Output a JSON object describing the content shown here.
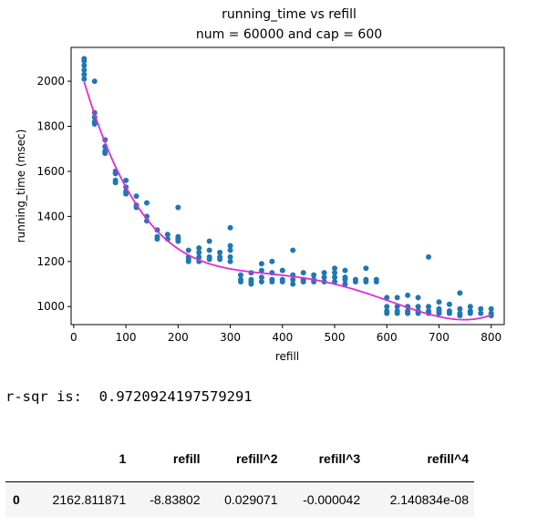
{
  "chart_data": {
    "type": "scatter",
    "title": "running_time vs refill",
    "subtitle": "num = 60000 and cap = 600",
    "xlabel": "refill",
    "ylabel": "running_time (msec)",
    "xlim": [
      -5,
      825
    ],
    "ylim": [
      920,
      2150
    ],
    "xticks": [
      0,
      100,
      200,
      300,
      400,
      500,
      600,
      700,
      800
    ],
    "yticks": [
      1000,
      1200,
      1400,
      1600,
      1800,
      2000
    ],
    "grid": false,
    "point_color": "#1f77b4",
    "fit_color": "#e12ad6",
    "fit_coefficients": [
      2162.811871,
      -8.83802,
      0.029071,
      -4.2e-05,
      2.140834e-08
    ],
    "points": [
      [
        20,
        2100
      ],
      [
        20,
        2090
      ],
      [
        20,
        2070
      ],
      [
        20,
        2050
      ],
      [
        20,
        2030
      ],
      [
        20,
        2010
      ],
      [
        40,
        2000
      ],
      [
        40,
        1860
      ],
      [
        40,
        1840
      ],
      [
        40,
        1820
      ],
      [
        40,
        1810
      ],
      [
        60,
        1740
      ],
      [
        60,
        1710
      ],
      [
        60,
        1690
      ],
      [
        60,
        1680
      ],
      [
        80,
        1600
      ],
      [
        80,
        1590
      ],
      [
        80,
        1560
      ],
      [
        80,
        1550
      ],
      [
        100,
        1560
      ],
      [
        100,
        1530
      ],
      [
        100,
        1510
      ],
      [
        100,
        1500
      ],
      [
        120,
        1490
      ],
      [
        120,
        1450
      ],
      [
        120,
        1440
      ],
      [
        140,
        1460
      ],
      [
        140,
        1400
      ],
      [
        140,
        1380
      ],
      [
        160,
        1340
      ],
      [
        160,
        1310
      ],
      [
        160,
        1300
      ],
      [
        180,
        1320
      ],
      [
        180,
        1300
      ],
      [
        200,
        1440
      ],
      [
        200,
        1310
      ],
      [
        200,
        1300
      ],
      [
        200,
        1290
      ],
      [
        220,
        1250
      ],
      [
        220,
        1220
      ],
      [
        220,
        1210
      ],
      [
        220,
        1200
      ],
      [
        240,
        1260
      ],
      [
        240,
        1240
      ],
      [
        240,
        1220
      ],
      [
        240,
        1200
      ],
      [
        260,
        1290
      ],
      [
        260,
        1250
      ],
      [
        260,
        1220
      ],
      [
        260,
        1210
      ],
      [
        280,
        1240
      ],
      [
        280,
        1220
      ],
      [
        280,
        1210
      ],
      [
        300,
        1350
      ],
      [
        300,
        1270
      ],
      [
        300,
        1250
      ],
      [
        300,
        1220
      ],
      [
        300,
        1200
      ],
      [
        320,
        1140
      ],
      [
        320,
        1120
      ],
      [
        320,
        1110
      ],
      [
        340,
        1150
      ],
      [
        340,
        1120
      ],
      [
        340,
        1110
      ],
      [
        340,
        1100
      ],
      [
        360,
        1190
      ],
      [
        360,
        1160
      ],
      [
        360,
        1130
      ],
      [
        360,
        1110
      ],
      [
        380,
        1200
      ],
      [
        380,
        1150
      ],
      [
        380,
        1120
      ],
      [
        380,
        1110
      ],
      [
        400,
        1160
      ],
      [
        400,
        1120
      ],
      [
        400,
        1110
      ],
      [
        420,
        1250
      ],
      [
        420,
        1140
      ],
      [
        420,
        1120
      ],
      [
        420,
        1100
      ],
      [
        440,
        1150
      ],
      [
        440,
        1120
      ],
      [
        440,
        1110
      ],
      [
        460,
        1140
      ],
      [
        460,
        1120
      ],
      [
        460,
        1110
      ],
      [
        480,
        1150
      ],
      [
        480,
        1130
      ],
      [
        480,
        1110
      ],
      [
        500,
        1170
      ],
      [
        500,
        1150
      ],
      [
        500,
        1130
      ],
      [
        500,
        1110
      ],
      [
        520,
        1160
      ],
      [
        520,
        1130
      ],
      [
        520,
        1120
      ],
      [
        520,
        1100
      ],
      [
        540,
        1120
      ],
      [
        540,
        1110
      ],
      [
        560,
        1170
      ],
      [
        560,
        1120
      ],
      [
        560,
        1110
      ],
      [
        580,
        1120
      ],
      [
        580,
        1110
      ],
      [
        600,
        1040
      ],
      [
        600,
        1000
      ],
      [
        600,
        980
      ],
      [
        600,
        970
      ],
      [
        620,
        1040
      ],
      [
        620,
        1000
      ],
      [
        620,
        980
      ],
      [
        620,
        970
      ],
      [
        640,
        1050
      ],
      [
        640,
        1000
      ],
      [
        640,
        980
      ],
      [
        640,
        970
      ],
      [
        660,
        1040
      ],
      [
        660,
        1000
      ],
      [
        660,
        980
      ],
      [
        660,
        970
      ],
      [
        680,
        1220
      ],
      [
        680,
        1000
      ],
      [
        680,
        980
      ],
      [
        680,
        970
      ],
      [
        700,
        1020
      ],
      [
        700,
        990
      ],
      [
        700,
        980
      ],
      [
        700,
        970
      ],
      [
        720,
        1010
      ],
      [
        720,
        980
      ],
      [
        720,
        970
      ],
      [
        740,
        1060
      ],
      [
        740,
        990
      ],
      [
        740,
        970
      ],
      [
        740,
        960
      ],
      [
        760,
        1000
      ],
      [
        760,
        980
      ],
      [
        760,
        970
      ],
      [
        780,
        990
      ],
      [
        780,
        970
      ],
      [
        800,
        990
      ],
      [
        800,
        970
      ],
      [
        800,
        960
      ]
    ]
  },
  "rsqr": {
    "label": "r-sqr is:",
    "value": "0.9720924197579291"
  },
  "table": {
    "columns": [
      "",
      "1",
      "refill",
      "refill^2",
      "refill^3",
      "refill^4"
    ],
    "rows": [
      [
        "0",
        "2162.811871",
        "-8.83802",
        "0.029071",
        "-0.000042",
        "2.140834e-08"
      ]
    ]
  }
}
